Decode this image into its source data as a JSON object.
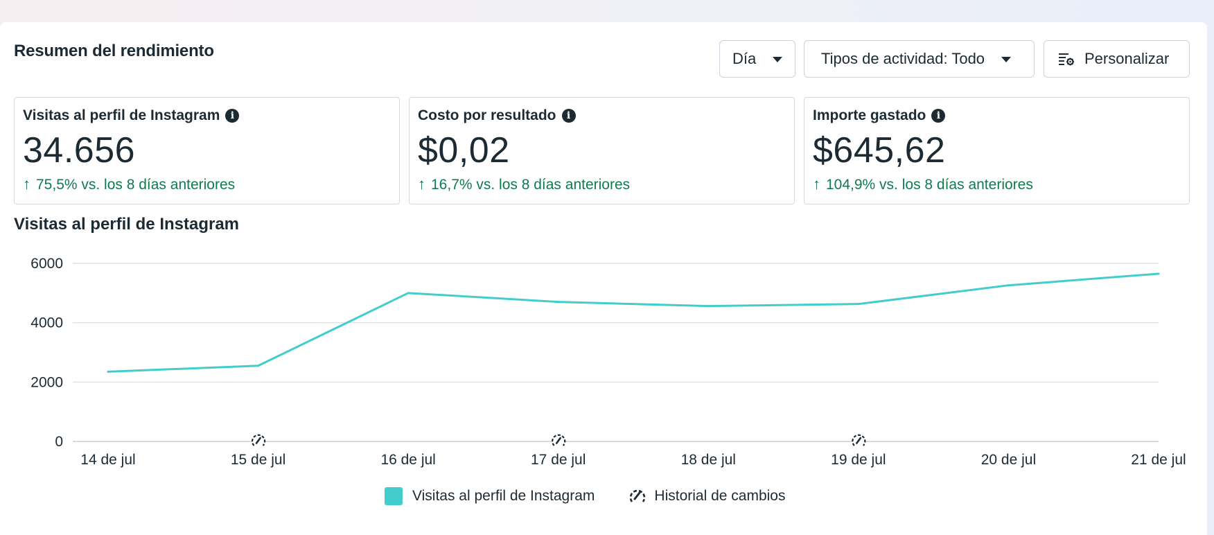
{
  "header": {
    "title": "Resumen del rendimiento",
    "day_button": "Día",
    "types_button": "Tipos de actividad: Todo",
    "customize_button": "Personalizar"
  },
  "kpis": [
    {
      "label": "Visitas al perfil de Instagram",
      "value": "34.656",
      "delta": "75,5% vs. los 8 días anteriores"
    },
    {
      "label": "Costo por resultado",
      "value": "$0,02",
      "delta": "16,7% vs. los 8 días anteriores"
    },
    {
      "label": "Importe gastado",
      "value": "$645,62",
      "delta": "104,9% vs. los 8 días anteriores"
    }
  ],
  "chart_title": "Visitas al perfil de Instagram",
  "chart_data": {
    "type": "line",
    "categories": [
      "14 de jul",
      "15 de jul",
      "16 de jul",
      "17 de jul",
      "18 de jul",
      "19 de jul",
      "20 de jul",
      "21 de jul"
    ],
    "series": [
      {
        "name": "Visitas al perfil de Instagram",
        "values": [
          2350,
          2550,
          5000,
          4700,
          4560,
          4630,
          5260,
          5650
        ],
        "color": "#43cccc"
      }
    ],
    "change_markers": [
      "15 de jul",
      "17 de jul",
      "19 de jul"
    ],
    "yticks": [
      0,
      2000,
      4000,
      6000
    ],
    "ylim": [
      0,
      6000
    ],
    "grid": true,
    "legend": "bottom-center"
  },
  "legend": {
    "series_label": "Visitas al perfil de Instagram",
    "history_label": "Historial de cambios"
  },
  "icons": {
    "caret": "caret-down-icon",
    "customize": "customize-icon",
    "info": "info-icon",
    "history": "change-history-icon",
    "arrow": "arrow-up-icon"
  }
}
